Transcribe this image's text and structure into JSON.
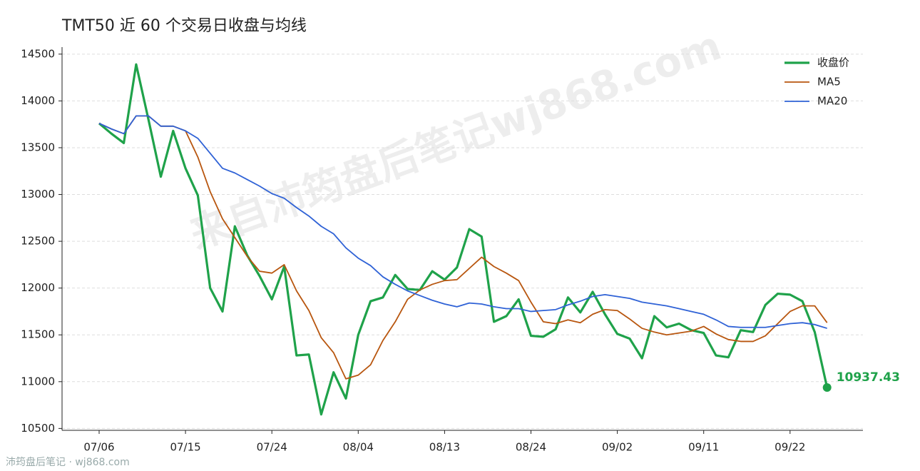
{
  "chart_data": {
    "type": "line",
    "title": "TMT50 近 60 个交易日收盘与均线",
    "watermark": "来自沛筠盘后笔记wj868.com",
    "footer": "沛筠盘后笔记 · wj868.com",
    "categories": [
      "07/06",
      null,
      null,
      null,
      null,
      null,
      null,
      "07/15",
      null,
      null,
      null,
      null,
      null,
      null,
      "07/24",
      null,
      null,
      null,
      null,
      null,
      null,
      "08/04",
      null,
      null,
      null,
      null,
      null,
      null,
      "08/13",
      null,
      null,
      null,
      null,
      null,
      null,
      "08/24",
      null,
      null,
      null,
      null,
      null,
      null,
      "09/02",
      null,
      null,
      null,
      null,
      null,
      null,
      "09/11",
      null,
      null,
      null,
      null,
      null,
      null,
      "09/22",
      null,
      null,
      null
    ],
    "series": [
      {
        "name": "收盘价",
        "color": "#1fa24a",
        "width": 3.2,
        "values": [
          13760,
          13650,
          13550,
          14390,
          13800,
          13190,
          13680,
          13280,
          12990,
          12000,
          11750,
          12660,
          12350,
          12130,
          11880,
          12230,
          11280,
          11290,
          10650,
          11100,
          10820,
          11500,
          11860,
          11900,
          12140,
          11990,
          11980,
          12180,
          12090,
          12220,
          12630,
          12550,
          11640,
          11700,
          11880,
          11490,
          11480,
          11560,
          11900,
          11740,
          11960,
          11720,
          11510,
          11460,
          11250,
          11700,
          11580,
          11620,
          11550,
          11520,
          11280,
          11260,
          11550,
          11530,
          11820,
          11940,
          11930,
          11860,
          11530,
          10937.43
        ]
      },
      {
        "name": "MA5",
        "color": "#b8560f",
        "width": 1.8,
        "values": [
          13760,
          13700,
          13650,
          13840,
          13840,
          13730,
          13730,
          13680,
          13400,
          13030,
          12740,
          12540,
          12340,
          12180,
          12160,
          12250,
          11970,
          11760,
          11470,
          11310,
          11030,
          11070,
          11180,
          11440,
          11640,
          11880,
          11980,
          12040,
          12080,
          12090,
          12210,
          12330,
          12230,
          12160,
          12080,
          11850,
          11640,
          11620,
          11660,
          11630,
          11720,
          11770,
          11760,
          11670,
          11570,
          11530,
          11500,
          11520,
          11540,
          11590,
          11510,
          11450,
          11430,
          11430,
          11490,
          11620,
          11750,
          11810,
          11810,
          11630
        ]
      },
      {
        "name": "MA20",
        "color": "#2f62d6",
        "width": 1.8,
        "values": [
          13760,
          13700,
          13650,
          13840,
          13840,
          13730,
          13730,
          13680,
          13600,
          13440,
          13280,
          13230,
          13160,
          13090,
          13010,
          12960,
          12860,
          12770,
          12660,
          12580,
          12430,
          12320,
          12240,
          12120,
          12040,
          11970,
          11920,
          11870,
          11830,
          11800,
          11840,
          11830,
          11800,
          11780,
          11780,
          11750,
          11760,
          11770,
          11820,
          11860,
          11910,
          11930,
          11910,
          11890,
          11850,
          11830,
          11810,
          11780,
          11750,
          11720,
          11660,
          11590,
          11580,
          11580,
          11580,
          11600,
          11620,
          11630,
          11610,
          11570
        ]
      }
    ],
    "ylim": [
      10480,
      14575
    ],
    "yticks": [
      10500,
      11000,
      11500,
      12000,
      12500,
      13000,
      13500,
      14000,
      14500
    ],
    "grid": true,
    "legend": "upper-right"
  }
}
